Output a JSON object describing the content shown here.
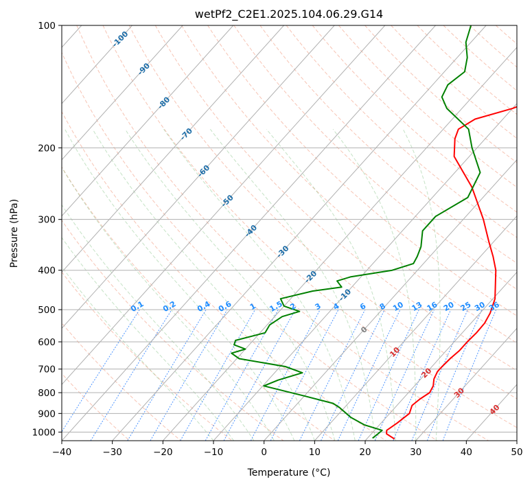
{
  "chart_data": {
    "type": "skew-t log-p",
    "title": "wetPf2_C2E1.2025.104.06.29.G14",
    "xlabel": "Temperature (°C)",
    "ylabel": "Pressure (hPa)",
    "xlim": [
      -40,
      50
    ],
    "ylim": [
      1050,
      100
    ],
    "y_scale": "log",
    "grid": true,
    "x_ticks": [
      -40,
      -30,
      -20,
      -10,
      0,
      10,
      20,
      30,
      40,
      50
    ],
    "y_ticks": [
      100,
      200,
      300,
      400,
      500,
      600,
      700,
      800,
      900,
      1000
    ],
    "series": [
      {
        "color": "#ff0000",
        "points": [
          [
            25.5,
            1040
          ],
          [
            23.0,
            1010
          ],
          [
            22.4,
            990
          ],
          [
            23.2,
            950
          ],
          [
            23.9,
            900
          ],
          [
            23.0,
            860
          ],
          [
            23.4,
            830
          ],
          [
            24.2,
            800
          ],
          [
            23.7,
            770
          ],
          [
            22.6,
            740
          ],
          [
            22.0,
            710
          ],
          [
            22.0,
            690
          ],
          [
            22.2,
            660
          ],
          [
            22.6,
            630
          ],
          [
            22.6,
            600
          ],
          [
            22.8,
            570
          ],
          [
            22.7,
            540
          ],
          [
            22.0,
            510
          ],
          [
            20.4,
            470
          ],
          [
            18.4,
            440
          ],
          [
            15.5,
            400
          ],
          [
            12.5,
            370
          ],
          [
            9.0,
            340
          ],
          [
            4.0,
            300
          ],
          [
            -4.0,
            250
          ],
          [
            -13.0,
            210
          ],
          [
            -16.0,
            190
          ],
          [
            -17.0,
            180
          ],
          [
            -15.5,
            170
          ],
          [
            -10.0,
            160
          ],
          [
            -6.0,
            150
          ],
          [
            -7.5,
            140
          ],
          [
            -11.0,
            130
          ],
          [
            -15.0,
            120
          ],
          [
            -16.0,
            110
          ],
          [
            -17.0,
            100
          ]
        ]
      },
      {
        "color": "#008000",
        "points": [
          [
            21.0,
            1035
          ],
          [
            21.3,
            1010
          ],
          [
            21.5,
            990
          ],
          [
            17.0,
            960
          ],
          [
            13.0,
            920
          ],
          [
            9.0,
            870
          ],
          [
            7.0,
            850
          ],
          [
            0.0,
            815
          ],
          [
            -9.8,
            770
          ],
          [
            -8.0,
            745
          ],
          [
            -4.5,
            715
          ],
          [
            -9.0,
            690
          ],
          [
            -19.5,
            660
          ],
          [
            -22.0,
            640
          ],
          [
            -20.0,
            625
          ],
          [
            -23.0,
            610
          ],
          [
            -23.5,
            595
          ],
          [
            -19.0,
            570
          ],
          [
            -19.5,
            545
          ],
          [
            -18.5,
            520
          ],
          [
            -16.0,
            505
          ],
          [
            -20.0,
            490
          ],
          [
            -22.0,
            470
          ],
          [
            -17.0,
            450
          ],
          [
            -12.0,
            440
          ],
          [
            -14.0,
            425
          ],
          [
            -12.0,
            415
          ],
          [
            -5.0,
            400
          ],
          [
            -2.0,
            385
          ],
          [
            -2.5,
            370
          ],
          [
            -3.5,
            350
          ],
          [
            -6.0,
            320
          ],
          [
            -6.0,
            295
          ],
          [
            -3.0,
            265
          ],
          [
            -5.0,
            230
          ],
          [
            -11.0,
            200
          ],
          [
            -15.0,
            180
          ],
          [
            -23.0,
            160
          ],
          [
            -26.0,
            150
          ],
          [
            -27.0,
            140
          ],
          [
            -26.0,
            130
          ],
          [
            -28.0,
            120
          ],
          [
            -31.0,
            110
          ],
          [
            -33.0,
            100
          ]
        ]
      }
    ],
    "dry_adiabat_labels": [
      "-100",
      "-90",
      "-80",
      "-70",
      "-60",
      "-50",
      "-40",
      "-30",
      "-20",
      "-10",
      "0",
      "10",
      "20",
      "30",
      "40"
    ],
    "mixing_ratio_labels": [
      "0.1",
      "0.2",
      "0.4",
      "0.6",
      "1",
      "1.5",
      "2",
      "3",
      "4",
      "6",
      "8",
      "10",
      "13",
      "16",
      "20",
      "25",
      "30",
      "36"
    ]
  }
}
